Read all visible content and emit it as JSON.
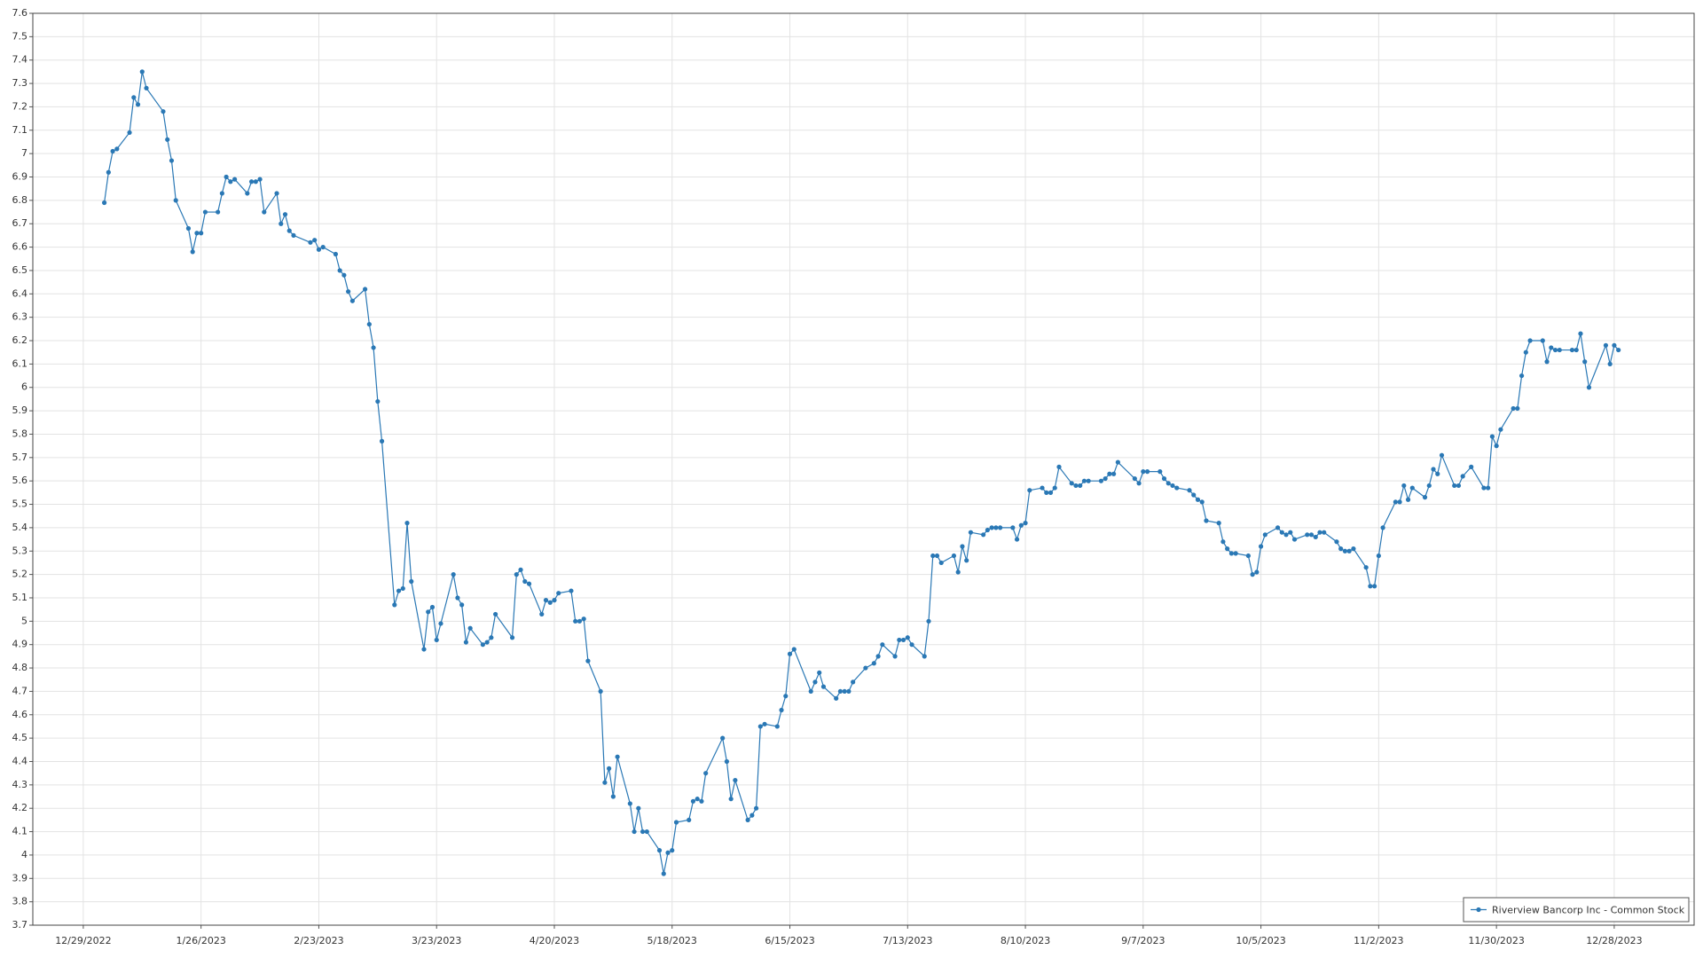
{
  "chart_data": {
    "type": "line",
    "xlim": [
      "2022-12-17",
      "2024-01-16"
    ],
    "xticks": [
      {
        "value": "2022-12-29",
        "label": "12/29/2022"
      },
      {
        "value": "2023-01-26",
        "label": "1/26/2023"
      },
      {
        "value": "2023-02-23",
        "label": "2/23/2023"
      },
      {
        "value": "2023-03-23",
        "label": "3/23/2023"
      },
      {
        "value": "2023-04-20",
        "label": "4/20/2023"
      },
      {
        "value": "2023-05-18",
        "label": "5/18/2023"
      },
      {
        "value": "2023-06-15",
        "label": "6/15/2023"
      },
      {
        "value": "2023-07-13",
        "label": "7/13/2023"
      },
      {
        "value": "2023-08-10",
        "label": "8/10/2023"
      },
      {
        "value": "2023-09-07",
        "label": "9/7/2023"
      },
      {
        "value": "2023-10-05",
        "label": "10/5/2023"
      },
      {
        "value": "2023-11-02",
        "label": "11/2/2023"
      },
      {
        "value": "2023-11-30",
        "label": "11/30/2023"
      },
      {
        "value": "2023-12-28",
        "label": "12/28/2023"
      }
    ],
    "ylim": [
      3.7,
      7.6
    ],
    "yticks": [
      3.7,
      3.8,
      3.9,
      4,
      4.1,
      4.2,
      4.3,
      4.4,
      4.5,
      4.6,
      4.7,
      4.8,
      4.9,
      5,
      5.1,
      5.2,
      5.3,
      5.4,
      5.5,
      5.6,
      5.7,
      5.8,
      5.9,
      6,
      6.1,
      6.2,
      6.3,
      6.4,
      6.5,
      6.6,
      6.7,
      6.8,
      6.9,
      7,
      7.1,
      7.2,
      7.3,
      7.4,
      7.5,
      7.6
    ],
    "grid": true,
    "legend": "lower right",
    "x": [
      "2023-01-03",
      "2023-01-04",
      "2023-01-05",
      "2023-01-06",
      "2023-01-09",
      "2023-01-10",
      "2023-01-11",
      "2023-01-12",
      "2023-01-13",
      "2023-01-17",
      "2023-01-18",
      "2023-01-19",
      "2023-01-20",
      "2023-01-23",
      "2023-01-24",
      "2023-01-25",
      "2023-01-26",
      "2023-01-27",
      "2023-01-30",
      "2023-01-31",
      "2023-02-01",
      "2023-02-02",
      "2023-02-03",
      "2023-02-06",
      "2023-02-07",
      "2023-02-08",
      "2023-02-09",
      "2023-02-10",
      "2023-02-13",
      "2023-02-14",
      "2023-02-15",
      "2023-02-16",
      "2023-02-17",
      "2023-02-21",
      "2023-02-22",
      "2023-02-23",
      "2023-02-24",
      "2023-02-27",
      "2023-02-28",
      "2023-03-01",
      "2023-03-02",
      "2023-03-03",
      "2023-03-06",
      "2023-03-07",
      "2023-03-08",
      "2023-03-09",
      "2023-03-10",
      "2023-03-13",
      "2023-03-14",
      "2023-03-15",
      "2023-03-16",
      "2023-03-17",
      "2023-03-20",
      "2023-03-21",
      "2023-03-22",
      "2023-03-23",
      "2023-03-24",
      "2023-03-27",
      "2023-03-28",
      "2023-03-29",
      "2023-03-30",
      "2023-03-31",
      "2023-04-03",
      "2023-04-04",
      "2023-04-05",
      "2023-04-06",
      "2023-04-10",
      "2023-04-11",
      "2023-04-12",
      "2023-04-13",
      "2023-04-14",
      "2023-04-17",
      "2023-04-18",
      "2023-04-19",
      "2023-04-20",
      "2023-04-21",
      "2023-04-24",
      "2023-04-25",
      "2023-04-26",
      "2023-04-27",
      "2023-04-28",
      "2023-05-01",
      "2023-05-02",
      "2023-05-03",
      "2023-05-04",
      "2023-05-05",
      "2023-05-08",
      "2023-05-09",
      "2023-05-10",
      "2023-05-11",
      "2023-05-12",
      "2023-05-15",
      "2023-05-16",
      "2023-05-17",
      "2023-05-18",
      "2023-05-19",
      "2023-05-22",
      "2023-05-23",
      "2023-05-24",
      "2023-05-25",
      "2023-05-26",
      "2023-05-30",
      "2023-05-31",
      "2023-06-01",
      "2023-06-02",
      "2023-06-05",
      "2023-06-06",
      "2023-06-07",
      "2023-06-08",
      "2023-06-09",
      "2023-06-12",
      "2023-06-13",
      "2023-06-14",
      "2023-06-15",
      "2023-06-16",
      "2023-06-20",
      "2023-06-21",
      "2023-06-22",
      "2023-06-23",
      "2023-06-26",
      "2023-06-27",
      "2023-06-28",
      "2023-06-29",
      "2023-06-30",
      "2023-07-03",
      "2023-07-05",
      "2023-07-06",
      "2023-07-07",
      "2023-07-10",
      "2023-07-11",
      "2023-07-12",
      "2023-07-13",
      "2023-07-14",
      "2023-07-17",
      "2023-07-18",
      "2023-07-19",
      "2023-07-20",
      "2023-07-21",
      "2023-07-24",
      "2023-07-25",
      "2023-07-26",
      "2023-07-27",
      "2023-07-28",
      "2023-07-31",
      "2023-08-01",
      "2023-08-02",
      "2023-08-03",
      "2023-08-04",
      "2023-08-07",
      "2023-08-08",
      "2023-08-09",
      "2023-08-10",
      "2023-08-11",
      "2023-08-14",
      "2023-08-15",
      "2023-08-16",
      "2023-08-17",
      "2023-08-18",
      "2023-08-21",
      "2023-08-22",
      "2023-08-23",
      "2023-08-24",
      "2023-08-25",
      "2023-08-28",
      "2023-08-29",
      "2023-08-30",
      "2023-08-31",
      "2023-09-01",
      "2023-09-05",
      "2023-09-06",
      "2023-09-07",
      "2023-09-08",
      "2023-09-11",
      "2023-09-12",
      "2023-09-13",
      "2023-09-14",
      "2023-09-15",
      "2023-09-18",
      "2023-09-19",
      "2023-09-20",
      "2023-09-21",
      "2023-09-22",
      "2023-09-25",
      "2023-09-26",
      "2023-09-27",
      "2023-09-28",
      "2023-09-29",
      "2023-10-02",
      "2023-10-03",
      "2023-10-04",
      "2023-10-05",
      "2023-10-06",
      "2023-10-09",
      "2023-10-10",
      "2023-10-11",
      "2023-10-12",
      "2023-10-13",
      "2023-10-16",
      "2023-10-17",
      "2023-10-18",
      "2023-10-19",
      "2023-10-20",
      "2023-10-23",
      "2023-10-24",
      "2023-10-25",
      "2023-10-26",
      "2023-10-27",
      "2023-10-30",
      "2023-10-31",
      "2023-11-01",
      "2023-11-02",
      "2023-11-03",
      "2023-11-06",
      "2023-11-07",
      "2023-11-08",
      "2023-11-09",
      "2023-11-10",
      "2023-11-13",
      "2023-11-14",
      "2023-11-15",
      "2023-11-16",
      "2023-11-17",
      "2023-11-20",
      "2023-11-21",
      "2023-11-22",
      "2023-11-24",
      "2023-11-27",
      "2023-11-28",
      "2023-11-29",
      "2023-11-30",
      "2023-12-01",
      "2023-12-04",
      "2023-12-05",
      "2023-12-06",
      "2023-12-07",
      "2023-12-08",
      "2023-12-11",
      "2023-12-12",
      "2023-12-13",
      "2023-12-14",
      "2023-12-15",
      "2023-12-18",
      "2023-12-19",
      "2023-12-20",
      "2023-12-21",
      "2023-12-22",
      "2023-12-26",
      "2023-12-27",
      "2023-12-28",
      "2023-12-29"
    ],
    "series": [
      {
        "name": "Riverview Bancorp Inc - Common Stock",
        "color": "#2a78b5",
        "values": [
          6.79,
          6.92,
          7.01,
          7.02,
          7.09,
          7.24,
          7.21,
          7.35,
          7.28,
          7.18,
          7.06,
          6.97,
          6.8,
          6.68,
          6.58,
          6.66,
          6.66,
          6.75,
          6.75,
          6.83,
          6.9,
          6.88,
          6.89,
          6.83,
          6.88,
          6.88,
          6.89,
          6.75,
          6.83,
          6.7,
          6.74,
          6.67,
          6.65,
          6.62,
          6.63,
          6.59,
          6.6,
          6.57,
          6.5,
          6.48,
          6.41,
          6.37,
          6.42,
          6.27,
          6.17,
          5.94,
          5.77,
          5.07,
          5.13,
          5.14,
          5.42,
          5.17,
          4.88,
          5.04,
          5.06,
          4.92,
          4.99,
          5.2,
          5.1,
          5.07,
          4.91,
          4.97,
          4.9,
          4.91,
          4.93,
          5.03,
          4.93,
          5.2,
          5.22,
          5.17,
          5.16,
          5.03,
          5.09,
          5.08,
          5.09,
          5.12,
          5.13,
          5.0,
          5.0,
          5.01,
          4.83,
          4.7,
          4.31,
          4.37,
          4.25,
          4.42,
          4.22,
          4.1,
          4.2,
          4.1,
          4.1,
          4.02,
          3.92,
          4.01,
          4.02,
          4.14,
          4.15,
          4.23,
          4.24,
          4.23,
          4.35,
          4.5,
          4.4,
          4.24,
          4.32,
          4.15,
          4.17,
          4.2,
          4.55,
          4.56,
          4.55,
          4.62,
          4.68,
          4.86,
          4.88,
          4.7,
          4.74,
          4.78,
          4.72,
          4.67,
          4.7,
          4.7,
          4.7,
          4.74,
          4.8,
          4.82,
          4.85,
          4.9,
          4.85,
          4.92,
          4.92,
          4.93,
          4.9,
          4.85,
          5.0,
          5.28,
          5.28,
          5.25,
          5.28,
          5.21,
          5.32,
          5.26,
          5.38,
          5.37,
          5.39,
          5.4,
          5.4,
          5.4,
          5.4,
          5.35,
          5.41,
          5.42,
          5.56,
          5.57,
          5.55,
          5.55,
          5.57,
          5.66,
          5.59,
          5.58,
          5.58,
          5.6,
          5.6,
          5.6,
          5.61,
          5.63,
          5.63,
          5.68,
          5.61,
          5.59,
          5.64,
          5.64,
          5.64,
          5.61,
          5.59,
          5.58,
          5.57,
          5.56,
          5.54,
          5.52,
          5.51,
          5.43,
          5.42,
          5.34,
          5.31,
          5.29,
          5.29,
          5.28,
          5.2,
          5.21,
          5.32,
          5.37,
          5.4,
          5.38,
          5.37,
          5.38,
          5.35,
          5.37,
          5.37,
          5.36,
          5.38,
          5.38,
          5.34,
          5.31,
          5.3,
          5.3,
          5.31,
          5.23,
          5.15,
          5.15,
          5.28,
          5.4,
          5.51,
          5.51,
          5.58,
          5.52,
          5.57,
          5.53,
          5.58,
          5.65,
          5.63,
          5.71,
          5.58,
          5.58,
          5.62,
          5.66,
          5.57,
          5.57,
          5.79,
          5.75,
          5.82,
          5.91,
          5.91,
          6.05,
          6.15,
          6.2,
          6.2,
          6.11,
          6.17,
          6.16,
          6.16,
          6.16,
          6.16,
          6.23,
          6.11,
          6.0,
          6.18,
          6.1,
          6.18,
          6.16
        ]
      }
    ]
  }
}
